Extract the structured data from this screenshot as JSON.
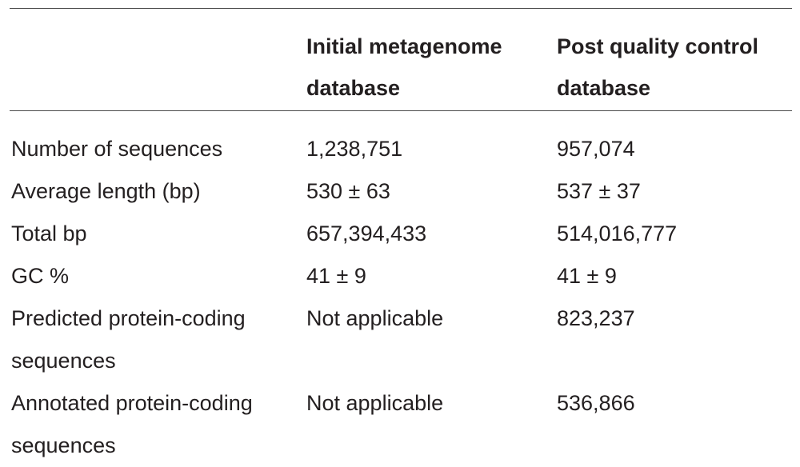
{
  "table": {
    "headers": [
      "",
      "Initial metagenome database",
      "Post quality control database"
    ],
    "rows": [
      {
        "label": "Number of sequences",
        "initial": "1,238,751",
        "post": "957,074"
      },
      {
        "label": "Average length (bp)",
        "initial": "530 ± 63",
        "post": "537 ± 37"
      },
      {
        "label": "Total bp",
        "initial": "657,394,433",
        "post": "514,016,777"
      },
      {
        "label": "GC %",
        "initial": "41 ± 9",
        "post": "41 ± 9"
      },
      {
        "label": "Predicted protein-coding sequences",
        "initial": "Not applicable",
        "post": "823,237"
      },
      {
        "label": "Annotated protein-coding sequences",
        "initial": "Not applicable",
        "post": "536,866"
      }
    ]
  }
}
